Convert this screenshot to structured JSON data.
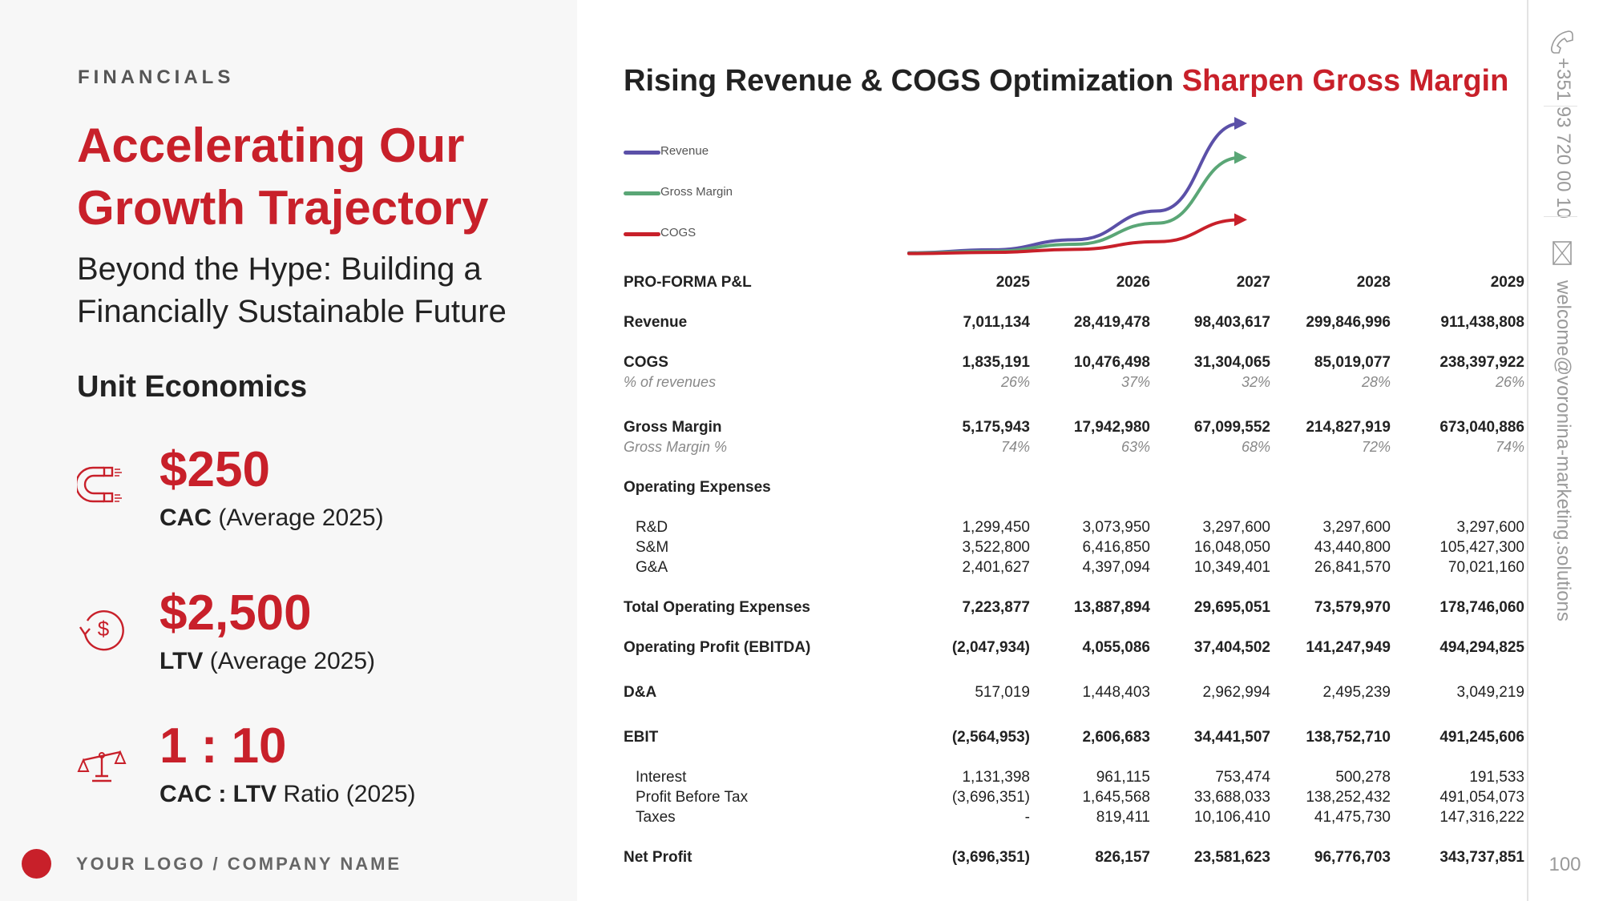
{
  "left": {
    "section_label": "FINANCIALS",
    "headline": "Accelerating Our Growth Trajectory",
    "subhead": "Beyond the Hype: Building a Financially Sustainable Future",
    "unit_title": "Unit Economics",
    "metrics": [
      {
        "icon": "magnet-icon",
        "value": "$250",
        "caption_bold": "CAC",
        "caption_rest": " (Average 2025)"
      },
      {
        "icon": "dollar-cycle-icon",
        "value": "$2,500",
        "caption_bold": "LTV",
        "caption_rest": " (Average 2025)"
      },
      {
        "icon": "balance-scale-icon",
        "value": "1 : 10",
        "caption_bold": "CAC : LTV",
        "caption_rest": " Ratio (2025)"
      }
    ],
    "logo_text": "YOUR LOGO / COMPANY NAME"
  },
  "main": {
    "title_plain": "Rising Revenue & COGS Optimization",
    "title_accent": "Sharpen Gross Margin",
    "legend": [
      {
        "label": "Revenue",
        "color": "#5b50a8"
      },
      {
        "label": "Gross Margin",
        "color": "#5aa676"
      },
      {
        "label": "COGS",
        "color": "#c8202a"
      }
    ]
  },
  "chart_data": {
    "type": "line",
    "x": [
      "2025",
      "2026",
      "2027",
      "2028",
      "2029"
    ],
    "series": [
      {
        "name": "Revenue",
        "values": [
          7011134,
          28419478,
          98403617,
          299846996,
          911438808
        ],
        "color": "#5b50a8"
      },
      {
        "name": "Gross Margin",
        "values": [
          5175943,
          17942980,
          67099552,
          214827919,
          673040886
        ],
        "color": "#5aa676"
      },
      {
        "name": "COGS",
        "values": [
          1835191,
          10476498,
          31304065,
          85019077,
          238397922
        ],
        "color": "#c8202a"
      }
    ],
    "ylim": [
      0,
      911438808
    ],
    "legend": "top-left",
    "grid": false
  },
  "table": {
    "header": {
      "label": "PRO-FORMA P&L",
      "years": [
        "2025",
        "2026",
        "2027",
        "2028",
        "2029"
      ]
    },
    "rows": [
      {
        "label": "Revenue",
        "values": [
          "7,011,134",
          "28,419,478",
          "98,403,617",
          "299,846,996",
          "911,438,808"
        ]
      },
      {
        "label": "COGS",
        "values": [
          "1,835,191",
          "10,476,498",
          "31,304,065",
          "85,019,077",
          "238,397,922"
        ]
      },
      {
        "label": "% of revenues",
        "values": [
          "26%",
          "37%",
          "32%",
          "28%",
          "26%"
        ]
      },
      {
        "label": "Gross Margin",
        "values": [
          "5,175,943",
          "17,942,980",
          "67,099,552",
          "214,827,919",
          "673,040,886"
        ]
      },
      {
        "label": "Gross Margin %",
        "values": [
          "74%",
          "63%",
          "68%",
          "72%",
          "74%"
        ]
      },
      {
        "label": "Operating Expenses",
        "values": [
          "",
          "",
          "",
          "",
          ""
        ]
      },
      {
        "label": "R&D",
        "values": [
          "1,299,450",
          "3,073,950",
          "3,297,600",
          "3,297,600",
          "3,297,600"
        ]
      },
      {
        "label": "S&M",
        "values": [
          "3,522,800",
          "6,416,850",
          "16,048,050",
          "43,440,800",
          "105,427,300"
        ]
      },
      {
        "label": "G&A",
        "values": [
          "2,401,627",
          "4,397,094",
          "10,349,401",
          "26,841,570",
          "70,021,160"
        ]
      },
      {
        "label": "Total Operating Expenses",
        "values": [
          "7,223,877",
          "13,887,894",
          "29,695,051",
          "73,579,970",
          "178,746,060"
        ]
      },
      {
        "label": "Operating Profit (EBITDA)",
        "values": [
          "(2,047,934)",
          "4,055,086",
          "37,404,502",
          "141,247,949",
          "494,294,825"
        ]
      },
      {
        "label": "D&A",
        "values": [
          "517,019",
          "1,448,403",
          "2,962,994",
          "2,495,239",
          "3,049,219"
        ]
      },
      {
        "label": "EBIT",
        "values": [
          "(2,564,953)",
          "2,606,683",
          "34,441,507",
          "138,752,710",
          "491,245,606"
        ]
      },
      {
        "label": "Interest",
        "values": [
          "1,131,398",
          "961,115",
          "753,474",
          "500,278",
          "191,533"
        ]
      },
      {
        "label": "Profit Before Tax",
        "values": [
          "(3,696,351)",
          "1,645,568",
          "33,688,033",
          "138,252,432",
          "491,054,073"
        ]
      },
      {
        "label": "Taxes",
        "values": [
          "-",
          "819,411",
          "10,106,410",
          "41,475,730",
          "147,316,222"
        ]
      },
      {
        "label": "Net Profit",
        "values": [
          "(3,696,351)",
          "826,157",
          "23,581,623",
          "96,776,703",
          "343,737,851"
        ]
      }
    ]
  },
  "sidebar": {
    "phone": "+351 93 720 00 10",
    "email": "welcome@voronina-marketing.solutions",
    "page_number": "100"
  }
}
